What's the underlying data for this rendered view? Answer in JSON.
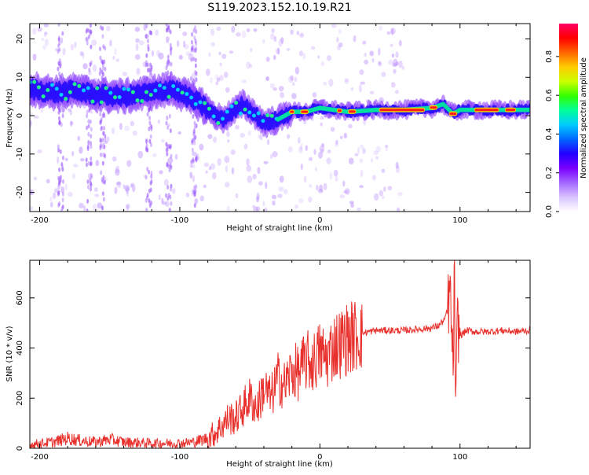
{
  "title": "S119.2023.152.10.19.R21",
  "chart_data": [
    {
      "type": "heatmap",
      "xlabel": "Height of straight line (km)",
      "ylabel": "Frequency (Hz)",
      "xlim": [
        -207,
        150
      ],
      "ylim": [
        -25,
        24
      ],
      "xticks": [
        -200,
        -100,
        0,
        100
      ],
      "yticks": [
        -20,
        -10,
        0,
        10,
        20
      ],
      "colorbar": {
        "label": "Normalized spectral amplitude",
        "ticks": [
          "0.0",
          "0.2",
          "0.4",
          "0.6",
          "0.8"
        ],
        "range": [
          0,
          0.97
        ],
        "colors": [
          "#ffffff",
          "#d9c2ff",
          "#a366ff",
          "#7a00ff",
          "#2200ff",
          "#0066ff",
          "#00ccff",
          "#00ff99",
          "#33ff00",
          "#ccff00",
          "#ffcc00",
          "#ff6600",
          "#ff0000",
          "#ff0066"
        ]
      },
      "ridge": {
        "x": [
          -207,
          -190,
          -175,
          -160,
          -140,
          -120,
          -105,
          -95,
          -85,
          -78,
          -70,
          -62,
          -55,
          -48,
          -40,
          -30,
          -20,
          -10,
          0,
          20,
          40,
          60,
          80,
          88,
          95,
          100,
          120,
          150
        ],
        "y": [
          7,
          6,
          6.5,
          5.5,
          5,
          6,
          7,
          5,
          3,
          1,
          -1,
          1,
          3,
          1,
          -2,
          -1,
          1,
          1,
          2,
          1,
          1.5,
          1.5,
          2,
          3,
          0.5,
          1.5,
          1.5,
          1.5
        ]
      },
      "vertical_streaks_x": [
        -122,
        -108,
        -90,
        -165,
        -155,
        -185
      ]
    },
    {
      "type": "line",
      "xlabel": "Height of straight line (km)",
      "ylabel": "SNR (10 * v/v)",
      "xlim": [
        -207,
        150
      ],
      "ylim": [
        0,
        750
      ],
      "xticks": [
        -200,
        -100,
        0,
        100
      ],
      "yticks": [
        0,
        200,
        400,
        600
      ],
      "color": "#e8302c",
      "series": [
        {
          "x": [
            -207,
            -190,
            -180,
            -170,
            -160,
            -150,
            -140,
            -120,
            -100,
            -90,
            -80,
            -75,
            -70,
            -65,
            -60,
            -55,
            -50,
            -45,
            -40,
            -35,
            -30,
            -25,
            -20,
            -15,
            -10,
            -5,
            0,
            5,
            10,
            15,
            20,
            25,
            30,
            40,
            50,
            60,
            70,
            80,
            85,
            90,
            93,
            95,
            96,
            97,
            98,
            100,
            105,
            110,
            120,
            130,
            140,
            150
          ],
          "y": [
            15,
            25,
            40,
            30,
            25,
            35,
            25,
            20,
            20,
            25,
            40,
            60,
            90,
            120,
            120,
            160,
            200,
            160,
            240,
            200,
            280,
            250,
            310,
            300,
            350,
            340,
            380,
            360,
            410,
            420,
            440,
            450,
            460,
            470,
            470,
            470,
            475,
            480,
            490,
            520,
            620,
            300,
            720,
            70,
            500,
            450,
            470,
            465,
            465,
            470,
            465,
            470
          ]
        }
      ]
    }
  ]
}
